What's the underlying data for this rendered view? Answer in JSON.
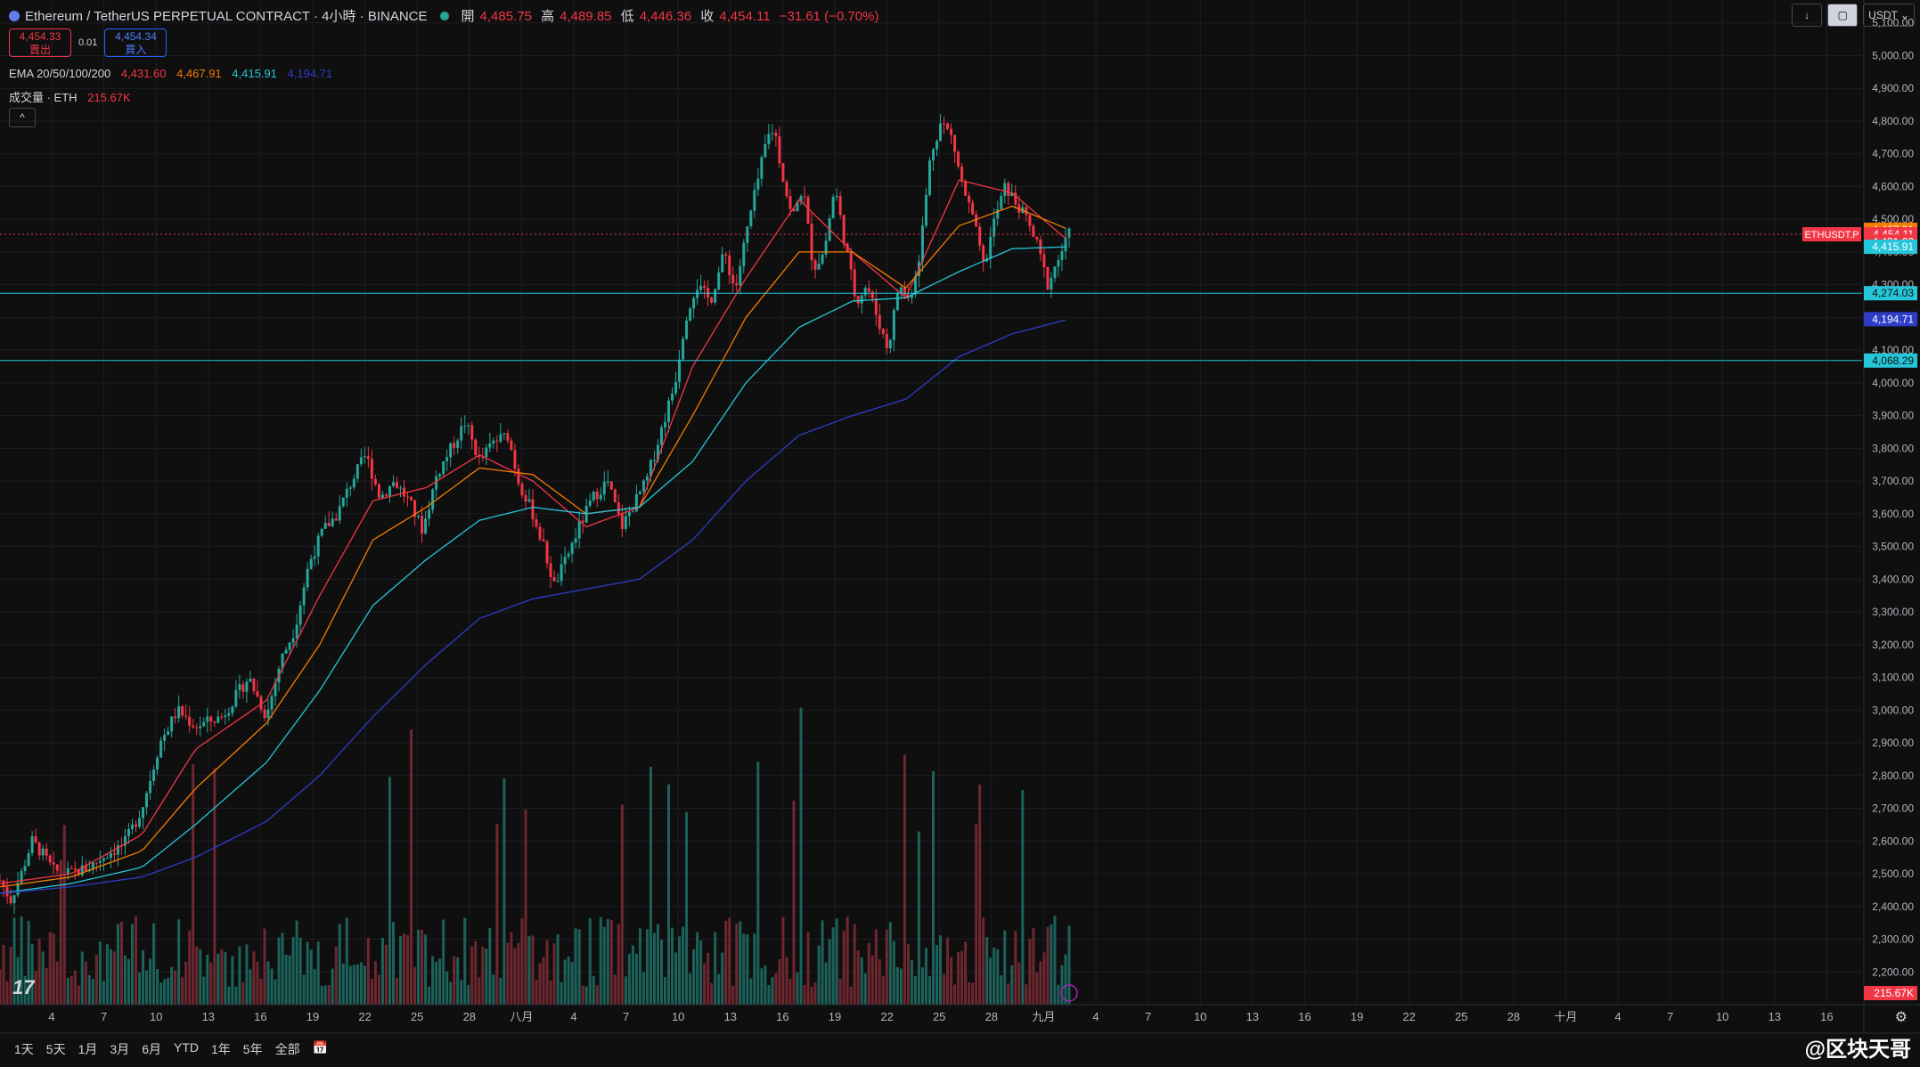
{
  "header": {
    "symbol": "Ethereum / TetherUS PERPETUAL CONTRACT · 4小時 · BINANCE",
    "ohlc": [
      {
        "k": "開",
        "v": "4,485.75"
      },
      {
        "k": "高",
        "v": "4,489.85"
      },
      {
        "k": "低",
        "v": "4,446.36"
      },
      {
        "k": "收",
        "v": "4,454.11"
      }
    ],
    "change": "−31.61 (−0.70%)"
  },
  "trade": {
    "sell_price": "4,454.33",
    "sell_label": "賣出",
    "spread": "0.01",
    "buy_price": "4,454.34",
    "buy_label": "買入"
  },
  "indicators": {
    "ema_label": "EMA 20/50/100/200",
    "ema_values": [
      "4,431.60",
      "4,467.91",
      "4,415.91",
      "4,194.71"
    ],
    "vol_label": "成交量 · ETH",
    "vol_value": "215.67K"
  },
  "toolbar": {
    "currency": "USDT",
    "collapse": "^"
  },
  "timeframes": [
    "1天",
    "5天",
    "1月",
    "3月",
    "6月",
    "YTD",
    "1年",
    "5年",
    "全部"
  ],
  "watermark": "@区块天哥",
  "tv_logo": "17",
  "colors": {
    "up": "#26a69a",
    "down": "#f23645",
    "ema20": "#f23645",
    "ema50": "#f57c00",
    "ema100": "#26c6da",
    "ema200": "#2f3cc8",
    "bg": "#0f0f0f"
  },
  "chart_data": {
    "type": "candlestick",
    "y_axis": {
      "ticks": [
        2200,
        2300,
        2400,
        2500,
        2600,
        2700,
        2800,
        2900,
        3000,
        3100,
        3200,
        3300,
        3400,
        3500,
        3600,
        3700,
        3800,
        3900,
        4000,
        4100,
        4200,
        4300,
        4400,
        4500,
        4600,
        4700,
        4800,
        4900,
        5000,
        5100
      ],
      "range": [
        2100,
        5170
      ]
    },
    "x_axis": {
      "labels": [
        "4",
        "7",
        "10",
        "13",
        "16",
        "19",
        "22",
        "25",
        "28",
        "八月",
        "4",
        "7",
        "10",
        "13",
        "16",
        "19",
        "22",
        "25",
        "28",
        "九月",
        "4",
        "7",
        "10",
        "13",
        "16",
        "19",
        "22",
        "25",
        "28",
        "十月",
        "4",
        "7",
        "10",
        "13",
        "16"
      ]
    },
    "price_path": [
      [
        0,
        2480
      ],
      [
        6,
        2420
      ],
      [
        12,
        2500
      ],
      [
        18,
        2600
      ],
      [
        24,
        2560
      ],
      [
        30,
        2510
      ],
      [
        40,
        2500
      ],
      [
        50,
        2520
      ],
      [
        60,
        2560
      ],
      [
        70,
        2590
      ],
      [
        80,
        2700
      ],
      [
        90,
        2900
      ],
      [
        100,
        3000
      ],
      [
        110,
        2950
      ],
      [
        125,
        2980
      ],
      [
        140,
        3100
      ],
      [
        150,
        2980
      ],
      [
        158,
        3150
      ],
      [
        166,
        3250
      ],
      [
        174,
        3450
      ],
      [
        182,
        3550
      ],
      [
        190,
        3600
      ],
      [
        198,
        3700
      ],
      [
        206,
        3780
      ],
      [
        214,
        3650
      ],
      [
        222,
        3700
      ],
      [
        230,
        3640
      ],
      [
        238,
        3550
      ],
      [
        246,
        3720
      ],
      [
        254,
        3800
      ],
      [
        262,
        3880
      ],
      [
        270,
        3760
      ],
      [
        278,
        3820
      ],
      [
        286,
        3840
      ],
      [
        292,
        3700
      ],
      [
        300,
        3600
      ],
      [
        306,
        3500
      ],
      [
        312,
        3380
      ],
      [
        318,
        3450
      ],
      [
        326,
        3560
      ],
      [
        334,
        3650
      ],
      [
        342,
        3700
      ],
      [
        350,
        3560
      ],
      [
        358,
        3640
      ],
      [
        364,
        3700
      ],
      [
        372,
        3850
      ],
      [
        380,
        4000
      ],
      [
        386,
        4200
      ],
      [
        392,
        4300
      ],
      [
        400,
        4250
      ],
      [
        408,
        4400
      ],
      [
        414,
        4280
      ],
      [
        420,
        4450
      ],
      [
        426,
        4600
      ],
      [
        432,
        4750
      ],
      [
        436,
        4780
      ],
      [
        440,
        4650
      ],
      [
        446,
        4500
      ],
      [
        452,
        4600
      ],
      [
        458,
        4350
      ],
      [
        464,
        4400
      ],
      [
        470,
        4600
      ],
      [
        476,
        4420
      ],
      [
        482,
        4250
      ],
      [
        488,
        4300
      ],
      [
        494,
        4200
      ],
      [
        500,
        4100
      ],
      [
        506,
        4300
      ],
      [
        512,
        4250
      ],
      [
        518,
        4400
      ],
      [
        524,
        4700
      ],
      [
        530,
        4800
      ],
      [
        536,
        4750
      ],
      [
        542,
        4600
      ],
      [
        548,
        4500
      ],
      [
        554,
        4350
      ],
      [
        560,
        4500
      ],
      [
        566,
        4600
      ],
      [
        572,
        4550
      ],
      [
        578,
        4500
      ],
      [
        584,
        4420
      ],
      [
        590,
        4300
      ],
      [
        596,
        4380
      ],
      [
        602,
        4454
      ]
    ],
    "ema": {
      "ema20": [
        [
          0,
          2470
        ],
        [
          40,
          2500
        ],
        [
          80,
          2620
        ],
        [
          110,
          2880
        ],
        [
          150,
          3030
        ],
        [
          180,
          3350
        ],
        [
          210,
          3640
        ],
        [
          240,
          3680
        ],
        [
          270,
          3780
        ],
        [
          300,
          3700
        ],
        [
          330,
          3560
        ],
        [
          360,
          3620
        ],
        [
          390,
          4050
        ],
        [
          420,
          4320
        ],
        [
          450,
          4560
        ],
        [
          480,
          4400
        ],
        [
          510,
          4260
        ],
        [
          540,
          4620
        ],
        [
          570,
          4580
        ],
        [
          602,
          4432
        ]
      ],
      "ema50": [
        [
          0,
          2460
        ],
        [
          40,
          2490
        ],
        [
          80,
          2570
        ],
        [
          110,
          2760
        ],
        [
          150,
          2960
        ],
        [
          180,
          3200
        ],
        [
          210,
          3520
        ],
        [
          240,
          3620
        ],
        [
          270,
          3740
        ],
        [
          300,
          3720
        ],
        [
          330,
          3600
        ],
        [
          360,
          3620
        ],
        [
          390,
          3900
        ],
        [
          420,
          4200
        ],
        [
          450,
          4400
        ],
        [
          480,
          4400
        ],
        [
          510,
          4290
        ],
        [
          540,
          4480
        ],
        [
          570,
          4540
        ],
        [
          602,
          4468
        ]
      ],
      "ema100": [
        [
          0,
          2440
        ],
        [
          40,
          2470
        ],
        [
          80,
          2520
        ],
        [
          110,
          2650
        ],
        [
          150,
          2840
        ],
        [
          180,
          3060
        ],
        [
          210,
          3320
        ],
        [
          240,
          3460
        ],
        [
          270,
          3580
        ],
        [
          300,
          3620
        ],
        [
          330,
          3600
        ],
        [
          360,
          3620
        ],
        [
          390,
          3760
        ],
        [
          420,
          4000
        ],
        [
          450,
          4170
        ],
        [
          480,
          4250
        ],
        [
          510,
          4260
        ],
        [
          540,
          4340
        ],
        [
          570,
          4410
        ],
        [
          602,
          4416
        ]
      ],
      "ema200": [
        [
          0,
          2440
        ],
        [
          40,
          2460
        ],
        [
          80,
          2490
        ],
        [
          110,
          2550
        ],
        [
          150,
          2660
        ],
        [
          180,
          2800
        ],
        [
          210,
          2980
        ],
        [
          240,
          3140
        ],
        [
          270,
          3280
        ],
        [
          300,
          3340
        ],
        [
          330,
          3370
        ],
        [
          360,
          3400
        ],
        [
          390,
          3520
        ],
        [
          420,
          3700
        ],
        [
          450,
          3840
        ],
        [
          480,
          3900
        ],
        [
          510,
          3950
        ],
        [
          540,
          4080
        ],
        [
          570,
          4150
        ],
        [
          602,
          4195
        ]
      ]
    },
    "horizontal_lines": [
      {
        "price": 4274.03,
        "label": "4,274.03"
      },
      {
        "price": 4068.29,
        "label": "4,068.29"
      }
    ],
    "price_labels": [
      {
        "price": 4467.91,
        "label": "4,467.91",
        "color": "#f57c00"
      },
      {
        "price": 4454.11,
        "label": "4,454.11",
        "color": "#f23645",
        "sub": "02:17:25"
      },
      {
        "price": 4431.6,
        "label": "4,431.60",
        "color": "#f23645"
      },
      {
        "price": 4415.91,
        "label": "4,415.91",
        "color": "#26c6da"
      },
      {
        "price": 4194.71,
        "label": "4,194.71",
        "color": "#2f3cc8"
      }
    ],
    "symbol_tag": "ETHUSDT.P",
    "volume_last": "215.67K"
  }
}
